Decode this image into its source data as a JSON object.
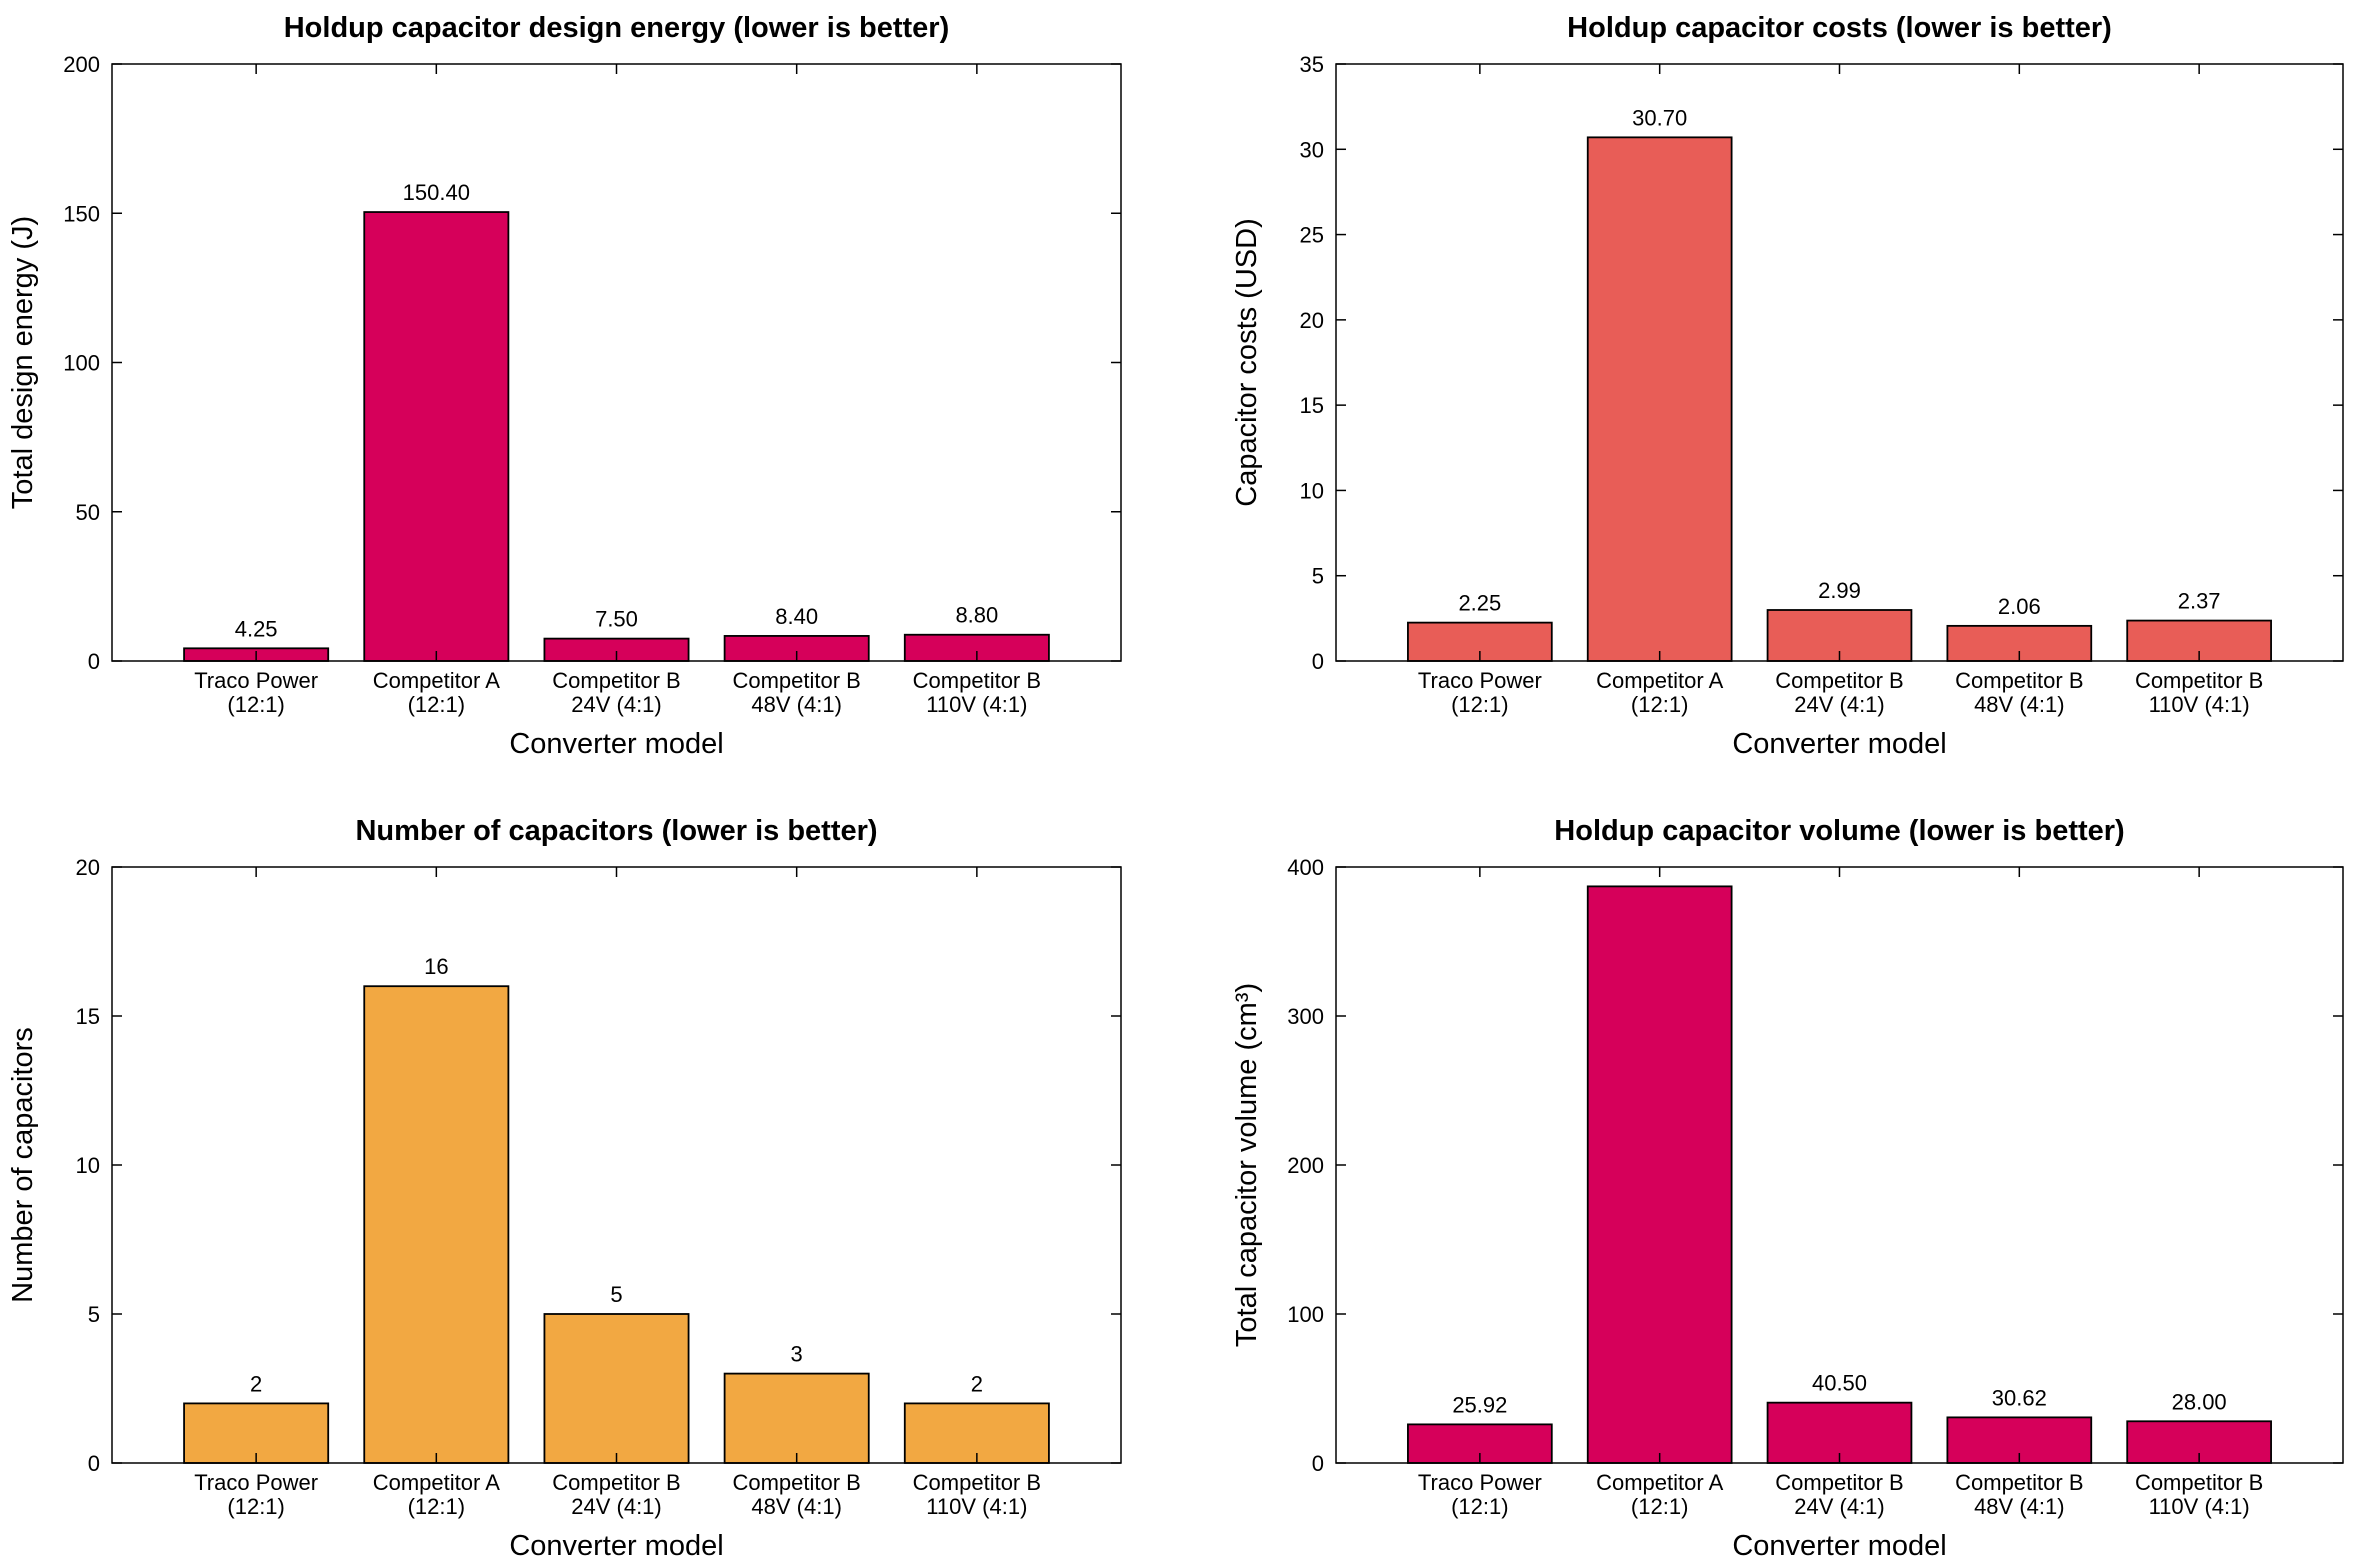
{
  "chart_data": [
    {
      "type": "bar",
      "title": "Holdup capacitor design energy (lower is better)",
      "xlabel": "Converter model",
      "ylabel": "Total design energy (J)",
      "ylim": [
        0,
        200
      ],
      "yticks": [
        0,
        50,
        100,
        150,
        200
      ],
      "categories": [
        [
          "Traco Power",
          "(12:1)"
        ],
        [
          "Competitor A",
          "(12:1)"
        ],
        [
          "Competitor B",
          "24V (4:1)"
        ],
        [
          "Competitor B",
          "48V (4:1)"
        ],
        [
          "Competitor B",
          "110V (4:1)"
        ]
      ],
      "values": [
        4.25,
        150.4,
        7.5,
        8.4,
        8.8
      ],
      "value_labels": [
        "4.25",
        "150.40",
        "7.50",
        "8.40",
        "8.80"
      ],
      "color": "#d6005a",
      "grid": false
    },
    {
      "type": "bar",
      "title": "Holdup capacitor costs (lower is better)",
      "xlabel": "Converter model",
      "ylabel": "Capacitor costs (USD)",
      "ylim": [
        0,
        35
      ],
      "yticks": [
        0,
        5,
        10,
        15,
        20,
        25,
        30,
        35
      ],
      "categories": [
        [
          "Traco Power",
          "(12:1)"
        ],
        [
          "Competitor A",
          "(12:1)"
        ],
        [
          "Competitor B",
          "24V (4:1)"
        ],
        [
          "Competitor B",
          "48V (4:1)"
        ],
        [
          "Competitor B",
          "110V (4:1)"
        ]
      ],
      "values": [
        2.25,
        30.7,
        2.99,
        2.06,
        2.37
      ],
      "value_labels": [
        "2.25",
        "30.70",
        "2.99",
        "2.06",
        "2.37"
      ],
      "color": "#e85d57",
      "grid": false
    },
    {
      "type": "bar",
      "title": "Number of capacitors (lower is better)",
      "xlabel": "Converter model",
      "ylabel": "Number of capacitors",
      "ylim": [
        0,
        20
      ],
      "yticks": [
        0,
        5,
        10,
        15,
        20
      ],
      "categories": [
        [
          "Traco Power",
          "(12:1)"
        ],
        [
          "Competitor A",
          "(12:1)"
        ],
        [
          "Competitor B",
          "24V (4:1)"
        ],
        [
          "Competitor B",
          "48V (4:1)"
        ],
        [
          "Competitor B",
          "110V (4:1)"
        ]
      ],
      "values": [
        2,
        16,
        5,
        3,
        2
      ],
      "value_labels": [
        "2",
        "16",
        "5",
        "3",
        "2"
      ],
      "color": "#f2a842",
      "grid": false
    },
    {
      "type": "bar",
      "title": "Holdup capacitor volume (lower is better)",
      "xlabel": "Converter model",
      "ylabel": "Total capacitor volume (cm³)",
      "ylim": [
        0,
        400
      ],
      "yticks": [
        0,
        100,
        200,
        300,
        400
      ],
      "categories": [
        [
          "Traco Power",
          "(12:1)"
        ],
        [
          "Competitor A",
          "(12:1)"
        ],
        [
          "Competitor B",
          "24V (4:1)"
        ],
        [
          "Competitor B",
          "48V (4:1)"
        ],
        [
          "Competitor B",
          "110V (4:1)"
        ]
      ],
      "values": [
        25.92,
        387,
        40.5,
        30.62,
        28.0
      ],
      "value_labels": [
        "25.92",
        "",
        "40.50",
        "30.62",
        "28.00"
      ],
      "color": "#d6005a",
      "grid": false
    }
  ]
}
